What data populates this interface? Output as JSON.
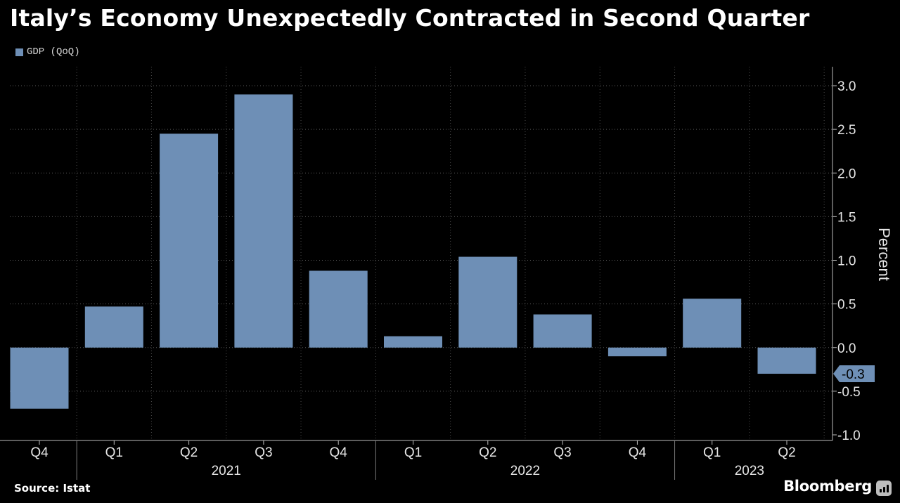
{
  "chart_data": {
    "type": "bar",
    "title": "Italy’s Economy Unexpectedly Contracted in Second Quarter",
    "legend": "GDP (QoQ)",
    "series_color": "#6e8fb6",
    "categories": [
      "Q4",
      "Q1",
      "Q2",
      "Q3",
      "Q4",
      "Q1",
      "Q2",
      "Q3",
      "Q4",
      "Q1",
      "Q2"
    ],
    "year_labels": [
      {
        "label": "2021",
        "start_index": 1,
        "end_index": 4
      },
      {
        "label": "2022",
        "start_index": 5,
        "end_index": 8
      },
      {
        "label": "2023",
        "start_index": 9,
        "end_index": 10
      }
    ],
    "values": [
      -0.7,
      0.47,
      2.45,
      2.9,
      0.88,
      0.13,
      1.04,
      0.38,
      -0.1,
      0.56,
      -0.3
    ],
    "last_value_label": "-0.3",
    "ylabel": "Percent",
    "ylim": [
      -1.0,
      3.0
    ],
    "yticks": [
      3.0,
      2.5,
      2.0,
      1.5,
      1.0,
      0.5,
      0.0,
      -0.5,
      -1.0
    ],
    "ytick_labels": [
      "3.0",
      "2.5",
      "2.0",
      "1.5",
      "1.0",
      "0.5",
      "0.0",
      "-0.5",
      "-1.0"
    ],
    "grid": true,
    "y_axis_side": "right"
  },
  "footer": {
    "source": "Source: Istat",
    "brand": "Bloomberg"
  }
}
